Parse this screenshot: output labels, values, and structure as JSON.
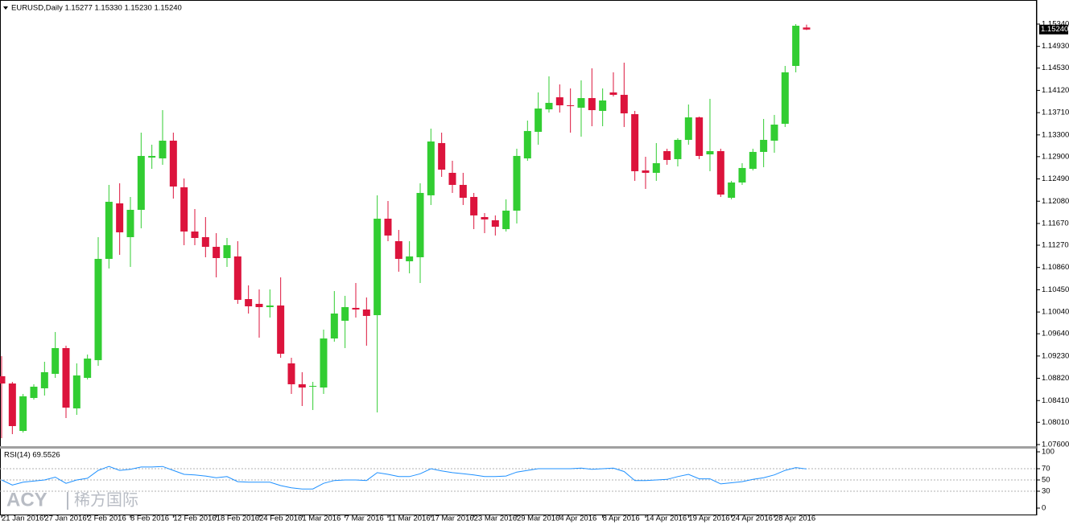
{
  "chart_data": [
    {
      "type": "candlestick",
      "title": "EURUSD,Daily  1.15277 1.15330 1.15230 1.15240",
      "categories": [
        "21 Jan 2016",
        null,
        null,
        null,
        "27 Jan 2016",
        null,
        null,
        null,
        "2 Feb 2016",
        null,
        null,
        null,
        "8 Feb 2016",
        null,
        null,
        null,
        "12 Feb 2016",
        null,
        null,
        null,
        "18 Feb 2016",
        null,
        null,
        null,
        "24 Feb 2016",
        null,
        null,
        null,
        "1 Mar 2016",
        null,
        null,
        null,
        "7 Mar 2016",
        null,
        null,
        null,
        "11 Mar 2016",
        null,
        null,
        null,
        "17 Mar 2016",
        null,
        null,
        null,
        "23 Mar 2016",
        null,
        null,
        null,
        "29 Mar 2016",
        null,
        null,
        null,
        "4 Apr 2016",
        null,
        null,
        null,
        "8 Apr 2016",
        null,
        null,
        null,
        "14 Apr 2016",
        null,
        null,
        null,
        "19 Apr 2016",
        null,
        null,
        null,
        "24 Apr 2016",
        null,
        null,
        null,
        "28 Apr 2016",
        null,
        null,
        null
      ],
      "open": [
        1.08858,
        1.08724,
        1.07851,
        1.08458,
        1.08636,
        1.08902,
        1.09376,
        1.08266,
        1.08828,
        1.09154,
        1.11018,
        1.1204,
        1.11418,
        1.11921,
        1.12883,
        1.12868,
        1.13194,
        1.12336,
        1.11522,
        1.11418,
        1.1124,
        1.11033,
        1.11063,
        1.10278,
        1.1019,
        1.1013,
        1.1016,
        1.09094,
        1.0871,
        1.08665,
        1.0865,
        1.09553,
        1.09879,
        1.10116,
        1.10086,
        1.09982,
        1.11758,
        1.11344,
        1.10974,
        1.11048,
        1.12188,
        1.1315,
        1.12602,
        1.1238,
        1.12158,
        1.11788,
        1.11729,
        1.11566,
        1.11906,
        1.12868,
        1.13357,
        1.13771,
        1.13993,
        1.13845,
        1.13801,
        1.13978,
        1.13742,
        1.14082,
        1.14038,
        1.13682,
        1.12646,
        1.12602,
        1.13002,
        1.12854,
        1.13209,
        1.13623,
        1.12942,
        1.13002,
        1.12143,
        1.12424,
        1.12676,
        1.12987,
        1.13194,
        1.13505,
        1.1457,
        1.15277
      ],
      "high": [
        1.09228,
        1.08754,
        1.08532,
        1.0871,
        1.09124,
        1.09672,
        1.0942,
        1.09094,
        1.09257,
        1.11418,
        1.1238,
        1.1241,
        1.12158,
        1.13342,
        1.1312,
        1.13756,
        1.13342,
        1.12498,
        1.11936,
        1.11788,
        1.11492,
        1.11403,
        1.11344,
        1.1053,
        1.10456,
        1.10456,
        1.10678,
        1.09198,
        1.08932,
        1.08754,
        1.09716,
        1.10426,
        1.10338,
        1.10574,
        1.10308,
        1.12188,
        1.12084,
        1.11551,
        1.11344,
        1.1241,
        1.13416,
        1.13342,
        1.12824,
        1.12602,
        1.12232,
        1.11862,
        1.11818,
        1.12114,
        1.13046,
        1.13564,
        1.14082,
        1.14378,
        1.1423,
        1.14156,
        1.14304,
        1.14526,
        1.14156,
        1.14452,
        1.1463,
        1.13742,
        1.12898,
        1.1315,
        1.13046,
        1.13238,
        1.1386,
        1.13638,
        1.13964,
        1.13046,
        1.12454,
        1.1278,
        1.13046,
        1.13594,
        1.13668,
        1.1457,
        1.1534,
        1.1533
      ],
      "low": [
        1.07718,
        1.07792,
        1.07822,
        1.08428,
        1.08502,
        1.08828,
        1.08088,
        1.08147,
        1.08798,
        1.0905,
        1.10841,
        1.11092,
        1.1087,
        1.11581,
        1.12676,
        1.1275,
        1.12128,
        1.1127,
        1.1127,
        1.11048,
        1.10678,
        1.1087,
        1.1019,
        1.10012,
        1.09568,
        1.09938,
        1.09198,
        1.08532,
        1.0831,
        1.08236,
        1.08532,
        1.09494,
        1.09376,
        1.09938,
        1.0942,
        1.08192,
        1.11344,
        1.10782,
        1.10752,
        1.10574,
        1.1201,
        1.12528,
        1.12232,
        1.1201,
        1.11566,
        1.11492,
        1.11448,
        1.11522,
        1.1167,
        1.12824,
        1.1312,
        1.13712,
        1.13712,
        1.13342,
        1.13268,
        1.1346,
        1.1346,
        1.14008,
        1.13446,
        1.12454,
        1.12306,
        1.12454,
        1.1275,
        1.1272,
        1.1312,
        1.12854,
        1.12632,
        1.12158,
        1.12114,
        1.1238,
        1.12646,
        1.12706,
        1.12972,
        1.13446,
        1.14452,
        1.1523
      ],
      "close": [
        1.08724,
        1.0794,
        1.08488,
        1.08665,
        1.08932,
        1.09376,
        1.0828,
        1.08872,
        1.09183,
        1.11018,
        1.12069,
        1.11507,
        1.11921,
        1.12913,
        1.12913,
        1.13194,
        1.1235,
        1.11522,
        1.11403,
        1.1124,
        1.11033,
        1.1127,
        1.10264,
        1.10145,
        1.1013,
        1.1016,
        1.09272,
        1.0871,
        1.0865,
        1.0868,
        1.09553,
        1.10012,
        1.1013,
        1.10086,
        1.09968,
        1.11758,
        1.11448,
        1.11018,
        1.11063,
        1.12232,
        1.13179,
        1.12661,
        1.1238,
        1.12143,
        1.11818,
        1.11744,
        1.1161,
        1.11906,
        1.12913,
        1.13372,
        1.13786,
        1.1389,
        1.13845,
        1.1383,
        1.13978,
        1.13756,
        1.13934,
        1.14038,
        1.13697,
        1.12632,
        1.12602,
        1.1278,
        1.12839,
        1.13209,
        1.13623,
        1.12913,
        1.13002,
        1.12202,
        1.12424,
        1.12691,
        1.12987,
        1.13209,
        1.1349,
        1.14452,
        1.1531,
        1.1524
      ],
      "up_color": "#32cd32",
      "down_color": "#dc143c",
      "ylim": [
        1.0757,
        1.15754
      ],
      "yticks": [
        {
          "value": 1.1534,
          "label": "1.15340"
        },
        {
          "value": 1.1493,
          "label": "1.14930"
        },
        {
          "value": 1.1453,
          "label": "1.14530"
        },
        {
          "value": 1.1412,
          "label": "1.14120"
        },
        {
          "value": 1.1371,
          "label": "1.13710"
        },
        {
          "value": 1.133,
          "label": "1.13300"
        },
        {
          "value": 1.129,
          "label": "1.12900"
        },
        {
          "value": 1.1249,
          "label": "1.12490"
        },
        {
          "value": 1.1208,
          "label": "1.12080"
        },
        {
          "value": 1.1167,
          "label": "1.11670"
        },
        {
          "value": 1.1127,
          "label": "1.11270"
        },
        {
          "value": 1.1086,
          "label": "1.10860"
        },
        {
          "value": 1.1045,
          "label": "1.10450"
        },
        {
          "value": 1.1004,
          "label": "1.10040"
        },
        {
          "value": 1.0964,
          "label": "1.09640"
        },
        {
          "value": 1.0923,
          "label": "1.09230"
        },
        {
          "value": 1.0882,
          "label": "1.08820"
        },
        {
          "value": 1.0841,
          "label": "1.08410"
        },
        {
          "value": 1.0801,
          "label": "1.08010"
        },
        {
          "value": 1.076,
          "label": "1.07600"
        }
      ],
      "last_price": {
        "value": 1.1524,
        "label": "1.15240"
      }
    },
    {
      "type": "line",
      "title": "RSI(14) 69.5526",
      "values": [
        50,
        41,
        46,
        48,
        50,
        55,
        44,
        50,
        53,
        67,
        74,
        67,
        69,
        73,
        73,
        74,
        67,
        60,
        59,
        57,
        54,
        56,
        47,
        46,
        46,
        46,
        40,
        36,
        34,
        34,
        44,
        49,
        50,
        50,
        49,
        63,
        60,
        56,
        56,
        61,
        70,
        66,
        63,
        61,
        59,
        56,
        56,
        57,
        64,
        67,
        70,
        70,
        70,
        70,
        71,
        69,
        70,
        71,
        65,
        49,
        49,
        50,
        51,
        56,
        60,
        52,
        52,
        43,
        45,
        47,
        51,
        54,
        59,
        67,
        72,
        69.5526
      ],
      "color": "#1e90ff",
      "ylim": [
        0,
        100
      ],
      "yticks": [
        100,
        70,
        50,
        30,
        0
      ],
      "grid": "dashed"
    }
  ],
  "watermark": {
    "brand": "ACY",
    "name": "稀方国际"
  }
}
